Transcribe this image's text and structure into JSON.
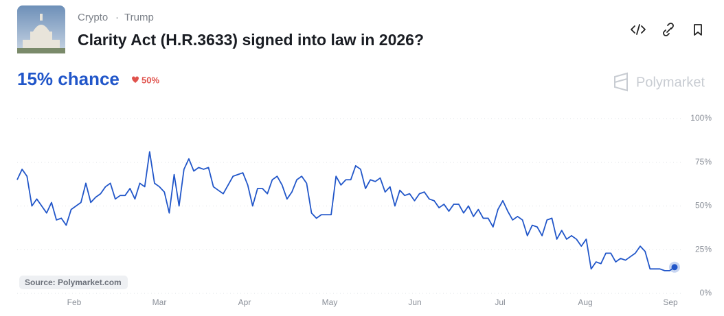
{
  "header": {
    "category": "Crypto",
    "separator": "·",
    "tag": "Trump",
    "title": "Clarity Act (H.R.3633) signed into law in 2026?"
  },
  "chance_label": "15% chance",
  "change_label": "50%",
  "brand": "Polymarket",
  "source": "Source: Polymarket.com",
  "chart_data": {
    "type": "line",
    "x_labels": [
      "Feb",
      "Mar",
      "Apr",
      "May",
      "Jun",
      "Jul",
      "Aug",
      "Sep"
    ],
    "series": [
      {
        "color": "#2156c9",
        "values": [
          65,
          71,
          67,
          50,
          54,
          50,
          46,
          52,
          42,
          43,
          39,
          48,
          50,
          52,
          63,
          52,
          55,
          57,
          61,
          63,
          54,
          56,
          56,
          60,
          54,
          63,
          61,
          81,
          63,
          61,
          58,
          46,
          68,
          50,
          71,
          77,
          70,
          72,
          71,
          72,
          61,
          59,
          57,
          62,
          67,
          68,
          69,
          62,
          50,
          60,
          60,
          57,
          65,
          67,
          62,
          54,
          58,
          65,
          67,
          63,
          46,
          43,
          45,
          45,
          45,
          67,
          62,
          65,
          65,
          73,
          71,
          60,
          65,
          64,
          66,
          58,
          61,
          50,
          59,
          56,
          57,
          53,
          57,
          58,
          54,
          53,
          49,
          51,
          47,
          51,
          51,
          46,
          50,
          44,
          48,
          43,
          43,
          38,
          48,
          53,
          47,
          42,
          44,
          42,
          33,
          39,
          38,
          33,
          42,
          43,
          31,
          36,
          31,
          33,
          31,
          27,
          31,
          14,
          18,
          17,
          23,
          23,
          18,
          20,
          19,
          21,
          23,
          27,
          24,
          14,
          14,
          14,
          13,
          13,
          15
        ]
      }
    ],
    "ylim": [
      0,
      100
    ],
    "yticks": [
      {
        "value": 0,
        "label": "0%"
      },
      {
        "value": 25,
        "label": "25%"
      },
      {
        "value": 50,
        "label": "50%"
      },
      {
        "value": 75,
        "label": "75%"
      },
      {
        "value": 100,
        "label": "100%"
      }
    ],
    "grid": true
  }
}
